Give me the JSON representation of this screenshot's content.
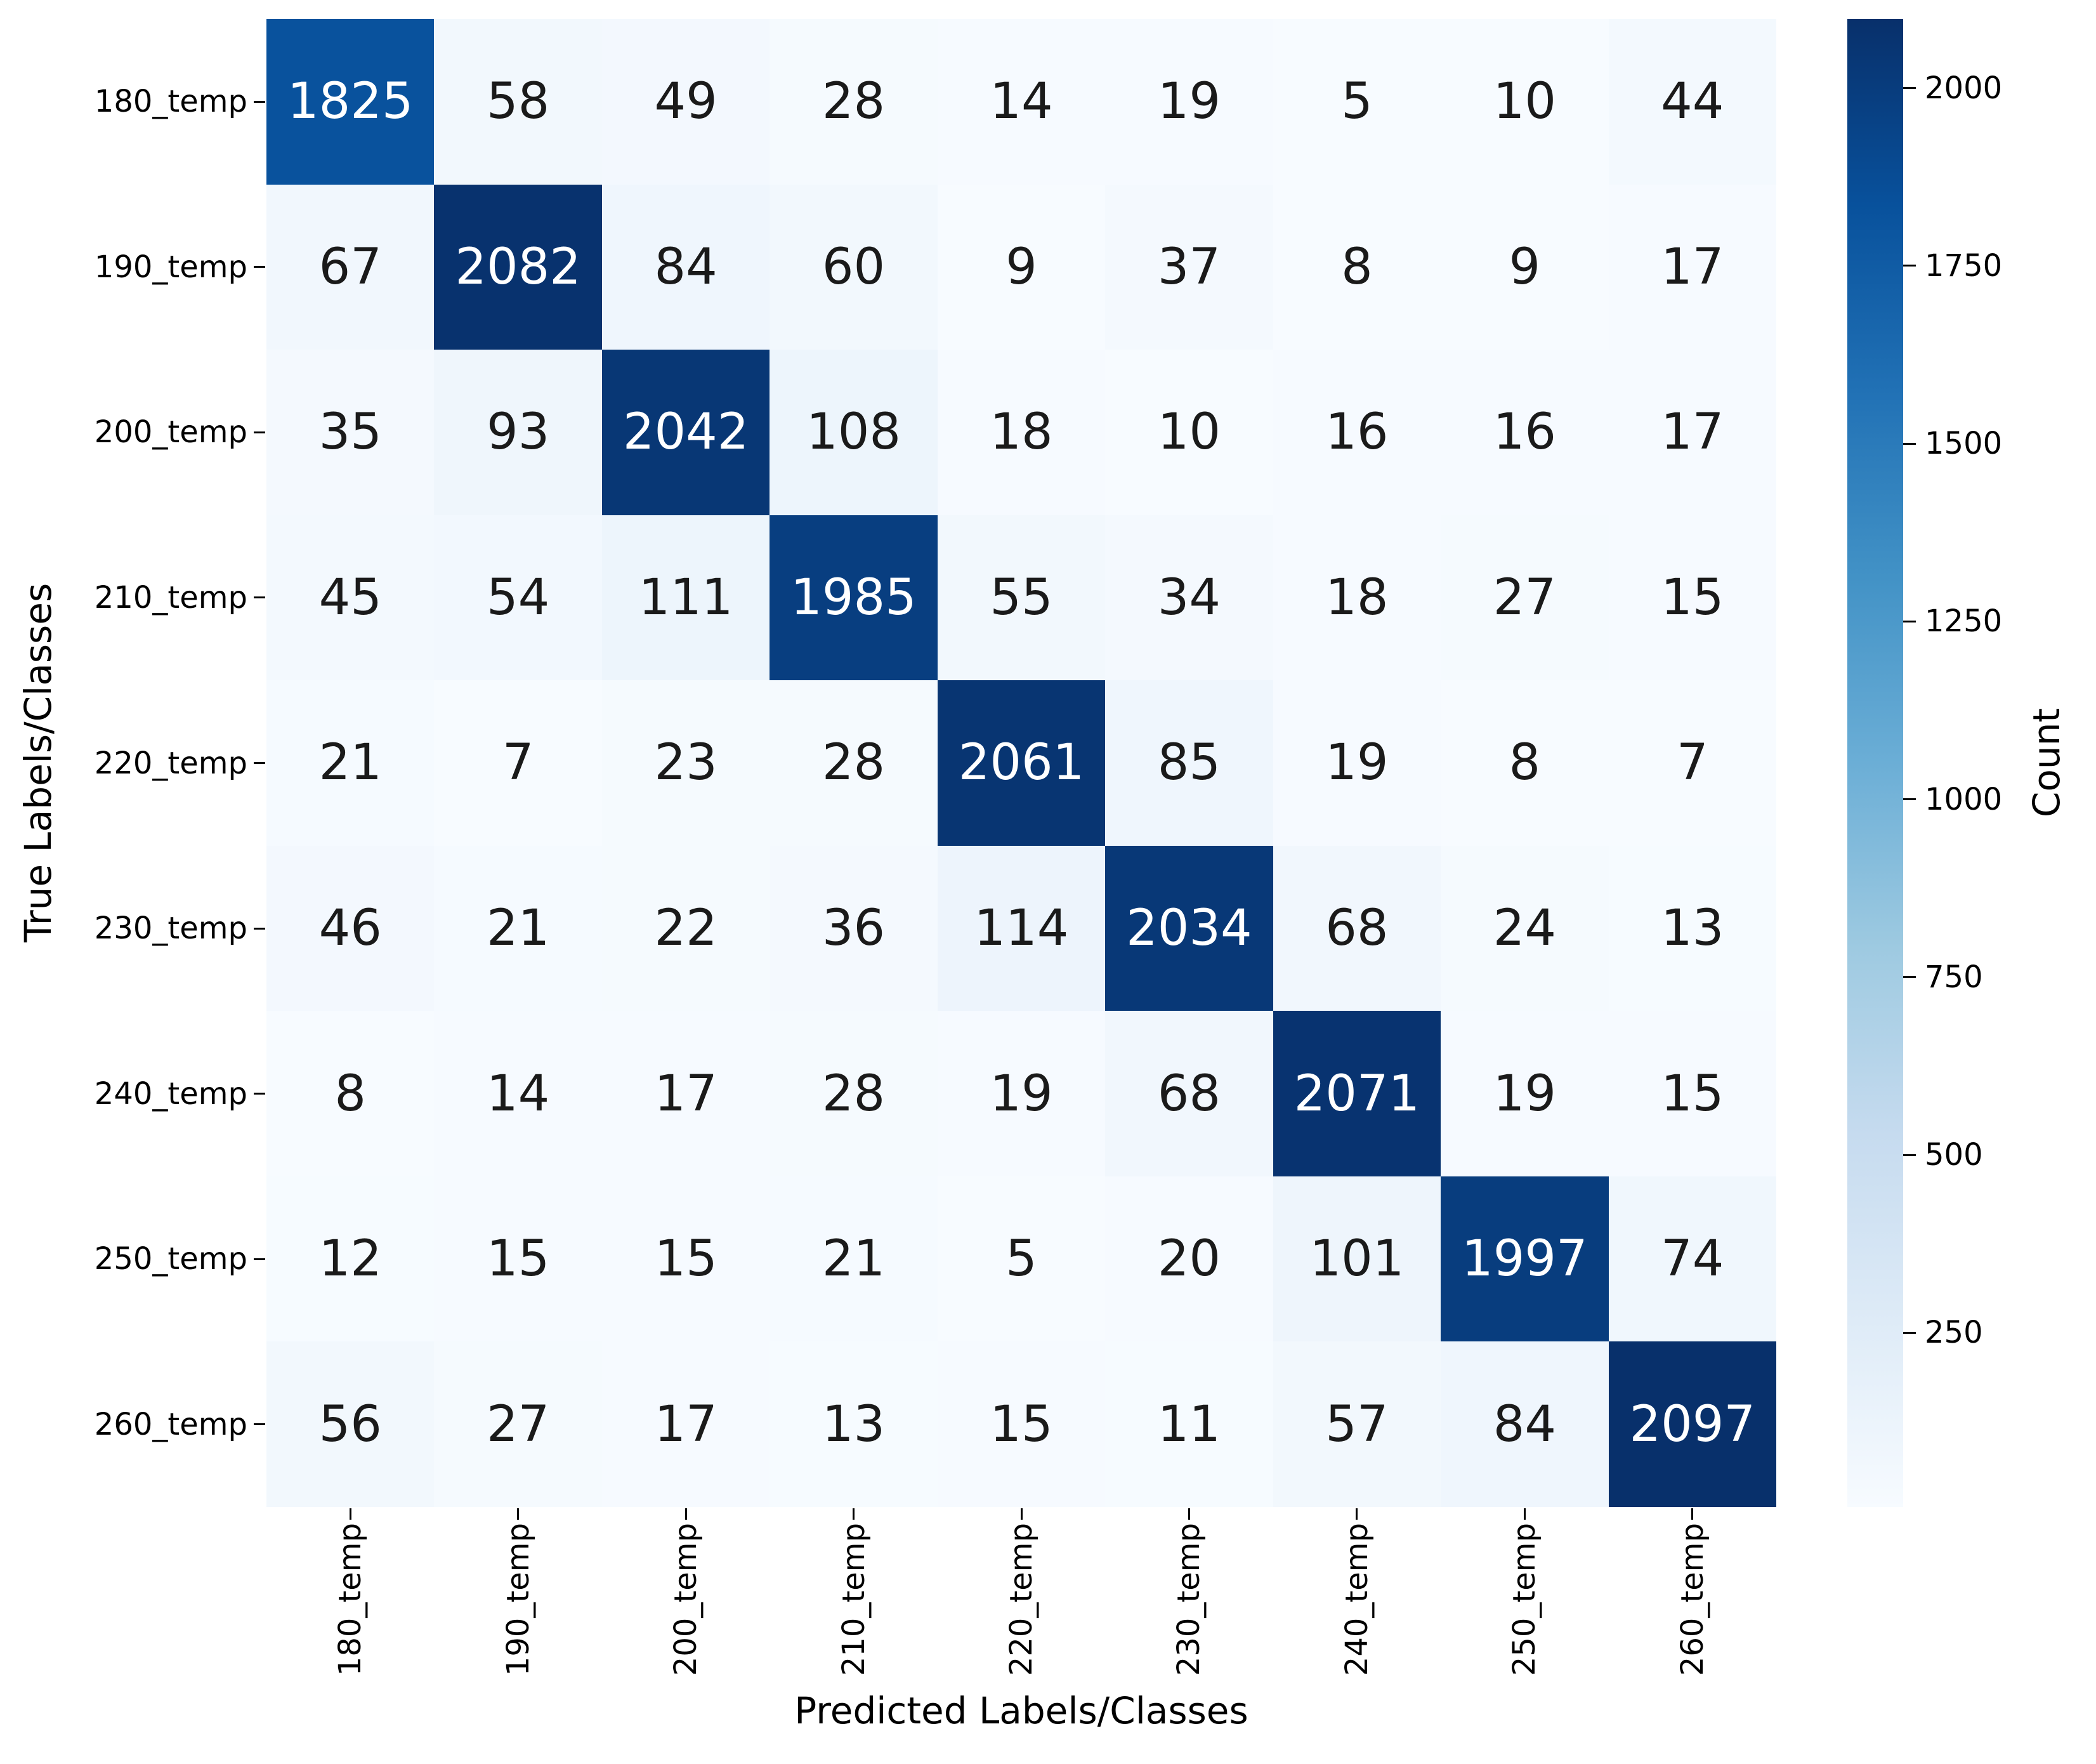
{
  "chart_data": {
    "type": "heatmap",
    "title": "",
    "xlabel": "Predicted Labels/Classes",
    "ylabel": "True Labels/Classes",
    "x_labels": [
      "180_temp",
      "190_temp",
      "200_temp",
      "210_temp",
      "220_temp",
      "230_temp",
      "240_temp",
      "250_temp",
      "260_temp"
    ],
    "y_labels": [
      "180_temp",
      "190_temp",
      "200_temp",
      "210_temp",
      "220_temp",
      "230_temp",
      "240_temp",
      "250_temp",
      "260_temp"
    ],
    "values": [
      [
        1825,
        58,
        49,
        28,
        14,
        19,
        5,
        10,
        44
      ],
      [
        67,
        2082,
        84,
        60,
        9,
        37,
        8,
        9,
        17
      ],
      [
        35,
        93,
        2042,
        108,
        18,
        10,
        16,
        16,
        17
      ],
      [
        45,
        54,
        111,
        1985,
        55,
        34,
        18,
        27,
        15
      ],
      [
        21,
        7,
        23,
        28,
        2061,
        85,
        19,
        8,
        7
      ],
      [
        46,
        21,
        22,
        36,
        114,
        2034,
        68,
        24,
        13
      ],
      [
        8,
        14,
        17,
        28,
        19,
        68,
        2071,
        19,
        15
      ],
      [
        12,
        15,
        15,
        21,
        5,
        20,
        101,
        1997,
        74
      ],
      [
        56,
        27,
        17,
        13,
        15,
        11,
        57,
        84,
        2097
      ]
    ],
    "colorbar": {
      "label": "Count",
      "ticks": [
        250,
        500,
        750,
        1000,
        1250,
        1500,
        1750,
        2000
      ],
      "vmin": 5,
      "vmax": 2097,
      "colormap": "Blues"
    },
    "colormap_anchors": [
      "#f7fbff",
      "#deebf7",
      "#c6dbef",
      "#9ecae1",
      "#6baed6",
      "#4292c6",
      "#2171b5",
      "#08519c",
      "#08306b"
    ],
    "annotation_colors": {
      "light": "#ffffff",
      "dark": "#1a1a1a"
    },
    "legend": {
      "position": "right",
      "grid": false
    }
  }
}
